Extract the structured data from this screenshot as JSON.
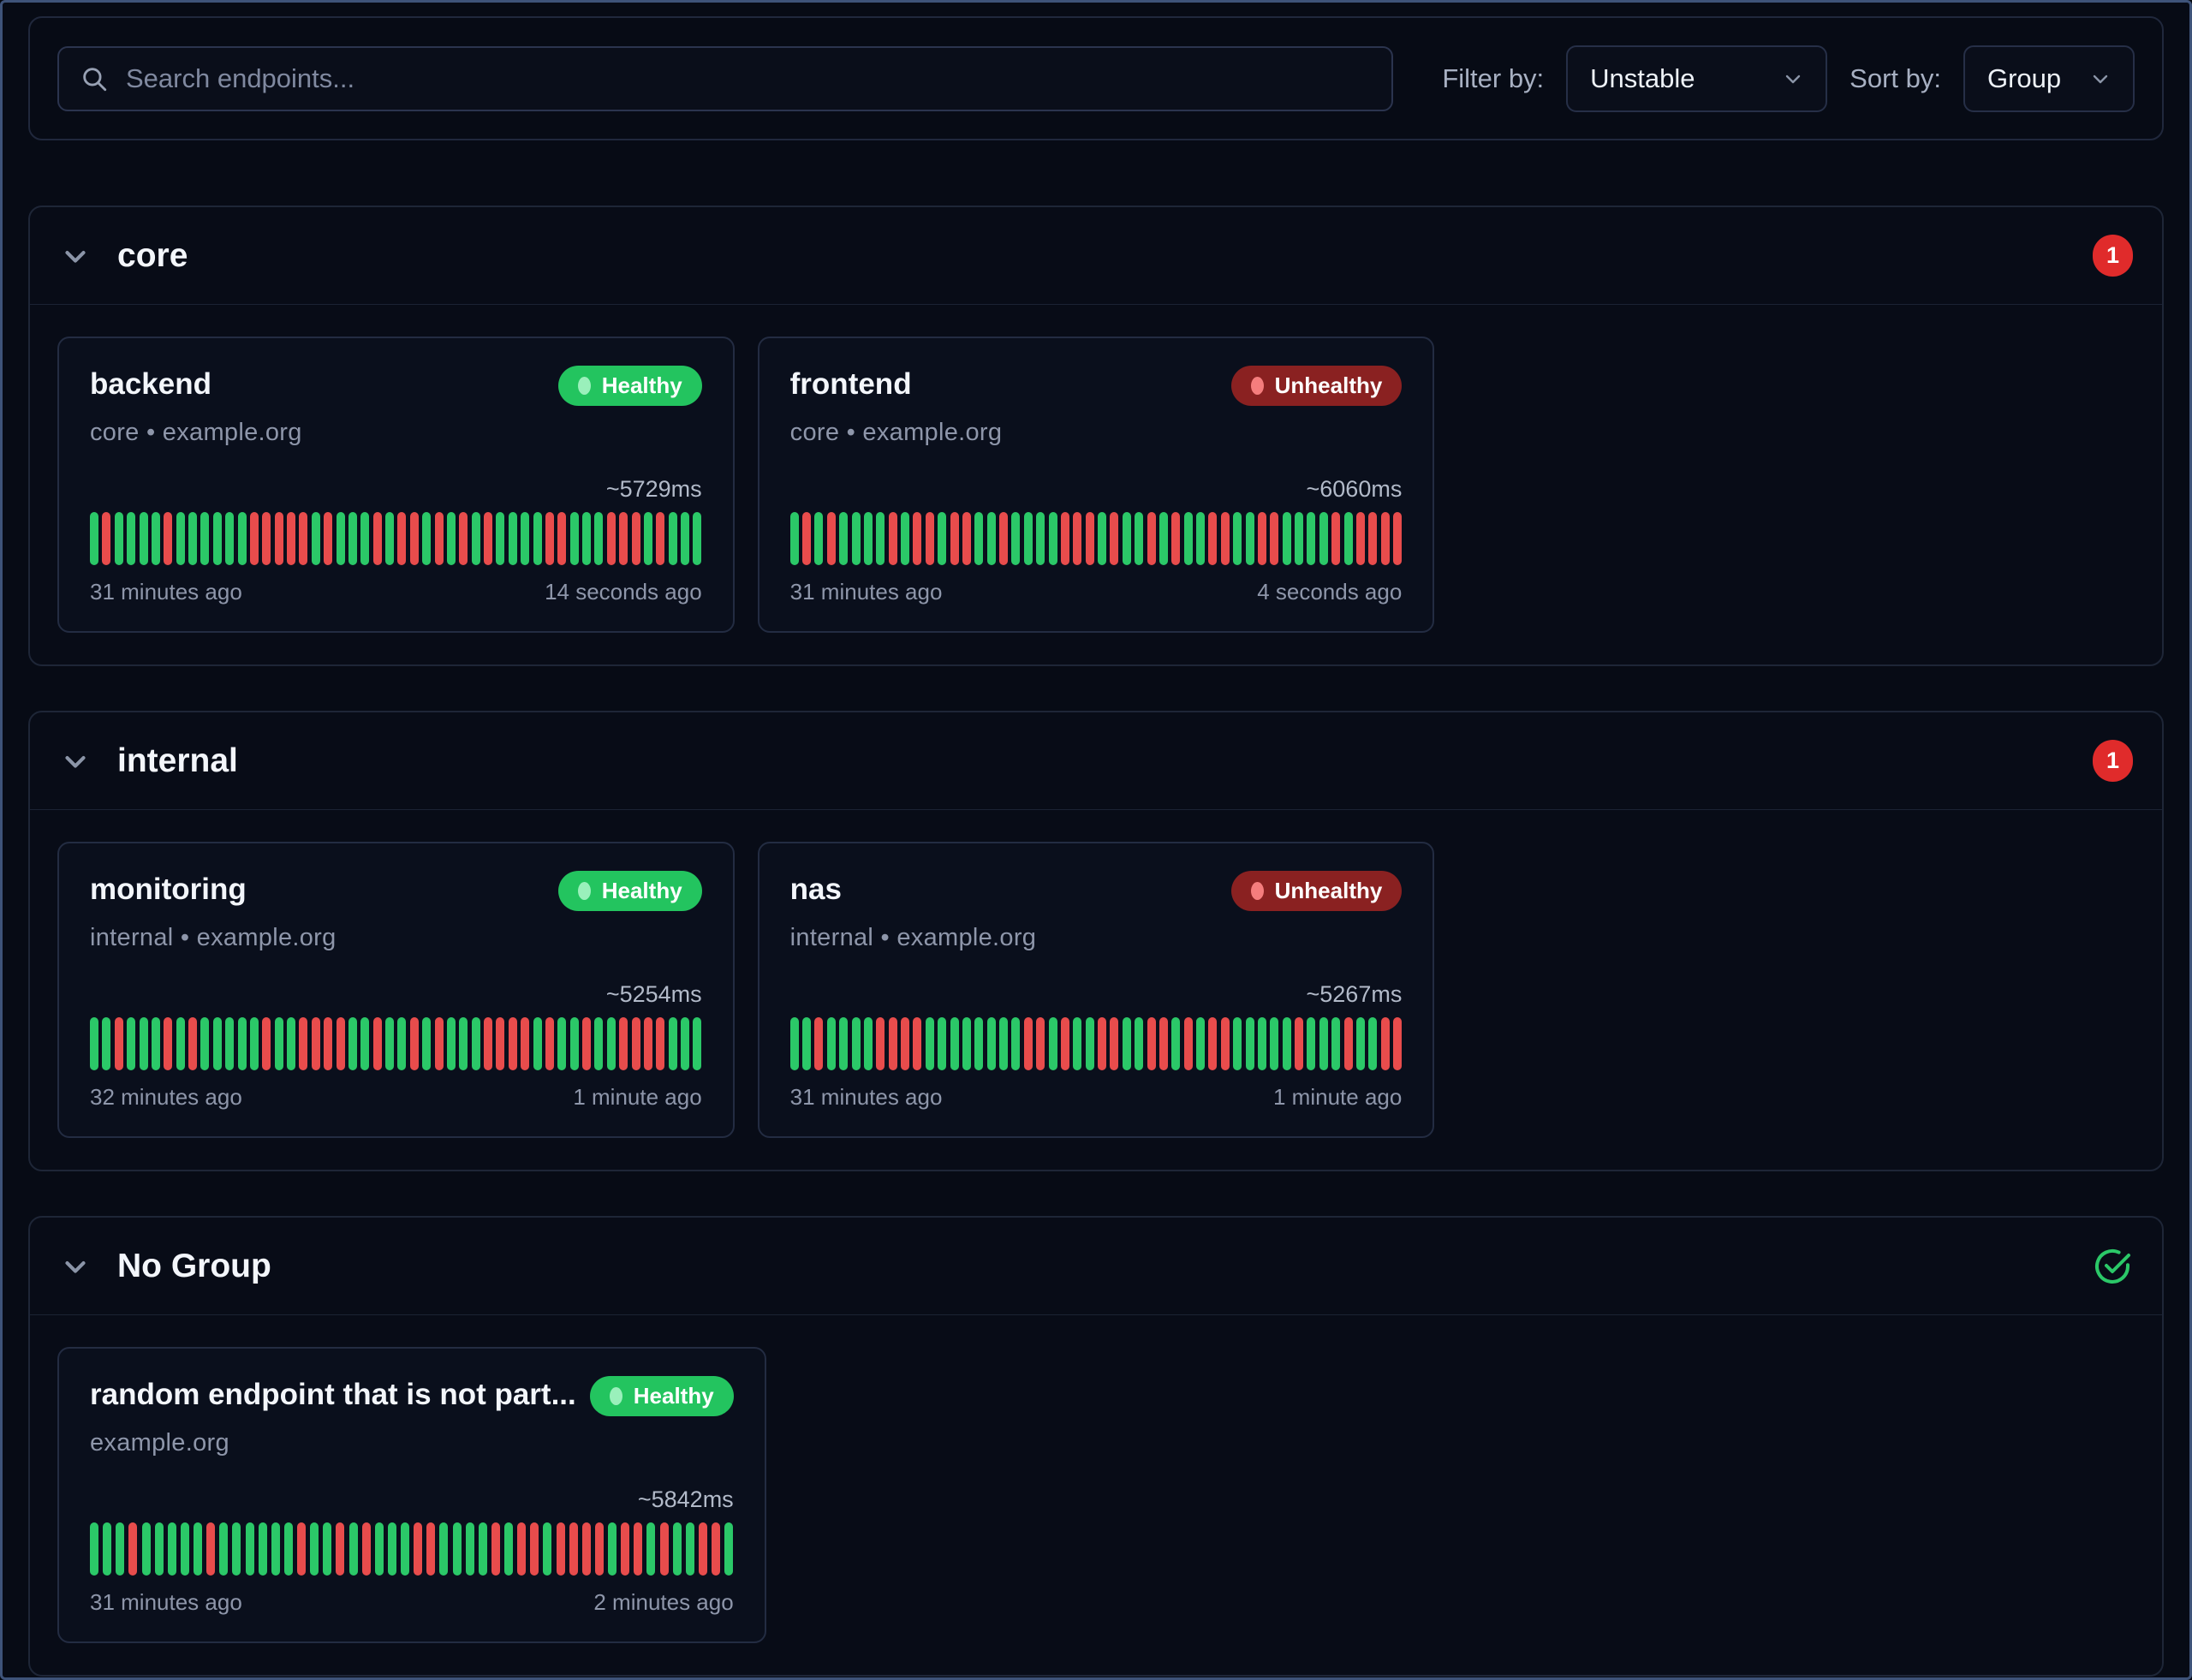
{
  "toolbar": {
    "search_placeholder": "Search endpoints...",
    "filter_label": "Filter by:",
    "filter_value": "Unstable",
    "sort_label": "Sort by:",
    "sort_value": "Group"
  },
  "colors": {
    "page_background": "#070b15",
    "page_border": "#3e5379",
    "bar_success": "#2bc868",
    "bar_failure": "#e84c4c",
    "healthy_badge": "#23c45f",
    "unhealthy_badge": "#8a2121",
    "count_badge": "#e02b2b"
  },
  "icons": {
    "search": "magnifier",
    "dropdown": "chevron-down",
    "group_toggle": "chevron-down",
    "group_healthy": "circle-check",
    "status_dot": "dot"
  },
  "groups": [
    {
      "name": "core",
      "badge": "1",
      "endpoints": [
        {
          "name": "backend",
          "status": "Healthy",
          "subtitle": "core  •  example.org",
          "response_time": "~5729ms",
          "oldest": "31 minutes ago",
          "newest": "14 seconds ago",
          "bars": "GRGGGGRGGGGGGRRRRRGRGGGRGRRGRGRGRGGGGRRGGGRRRGRGGG"
        },
        {
          "name": "frontend",
          "status": "Unhealthy",
          "subtitle": "core  •  example.org",
          "response_time": "~6060ms",
          "oldest": "31 minutes ago",
          "newest": "4 seconds ago",
          "bars": "GRGRGGGGRGRRGRRGGRGGGGRRRGRGGRGRGGRRGGRRGGGGRGRRRR"
        }
      ]
    },
    {
      "name": "internal",
      "badge": "1",
      "endpoints": [
        {
          "name": "monitoring",
          "status": "Healthy",
          "subtitle": "internal  •  example.org",
          "response_time": "~5254ms",
          "oldest": "32 minutes ago",
          "newest": "1 minute ago",
          "bars": "GGRGGGRGRGGGGGRGGRRRRGGRGGRGRGGGRRRRGRGGRGGRRRRGGG"
        },
        {
          "name": "nas",
          "status": "Unhealthy",
          "subtitle": "internal  •  example.org",
          "response_time": "~5267ms",
          "oldest": "31 minutes ago",
          "newest": "1 minute ago",
          "bars": "GGRGGGGRRRRGGGGGGGGRRGRGGRRGGRRGRGRRGGGGGRGGGRGGRR"
        }
      ]
    },
    {
      "name": "No Group",
      "badge": null,
      "endpoints": [
        {
          "name": "random endpoint that is not part...",
          "status": "Healthy",
          "subtitle": "example.org",
          "response_time": "~5842ms",
          "oldest": "31 minutes ago",
          "newest": "2 minutes ago",
          "bars": "GGGRGGGGGRGGGGGGRGGRGRGGGRRGGGGRGRRGRRRRGRRGRGGRRG"
        }
      ]
    }
  ]
}
